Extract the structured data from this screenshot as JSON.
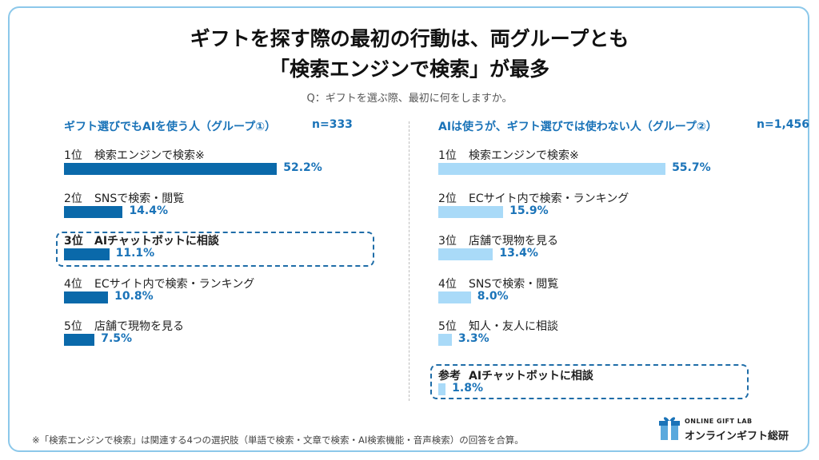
{
  "title_line1": "ギフトを探す際の最初の行動は、両グループとも",
  "title_line2": "「検索エンジンで検索」が最多",
  "question": "Q：ギフトを選ぶ際、最初に何をしますか。",
  "colors": {
    "group1_bar": "#0a69aa",
    "group2_bar": "#a9daf8",
    "value_text": "#1a73b8",
    "frame": "#8cc8ea"
  },
  "chart_data": [
    {
      "type": "bar",
      "orientation": "horizontal",
      "title": "ギフト選びでもAIを使う人（グループ①）",
      "n_label": "n=333",
      "items": [
        {
          "rank": "1位",
          "label": "検索エンジンで検索※",
          "value": 52.2,
          "value_label": "52.2%"
        },
        {
          "rank": "2位",
          "label": "SNSで検索・閲覧",
          "value": 14.4,
          "value_label": "14.4%"
        },
        {
          "rank": "3位",
          "label": "AIチャットボットに相談",
          "value": 11.1,
          "value_label": "11.1%",
          "highlight": true
        },
        {
          "rank": "4位",
          "label": "ECサイト内で検索・ランキング",
          "value": 10.8,
          "value_label": "10.8%"
        },
        {
          "rank": "5位",
          "label": "店舗で現物を見る",
          "value": 7.5,
          "value_label": "7.5%"
        }
      ]
    },
    {
      "type": "bar",
      "orientation": "horizontal",
      "title": "AIは使うが、ギフト選びでは使わない人（グループ②）",
      "n_label": "n=1,456",
      "items": [
        {
          "rank": "1位",
          "label": "検索エンジンで検索※",
          "value": 55.7,
          "value_label": "55.7%"
        },
        {
          "rank": "2位",
          "label": "ECサイト内で検索・ランキング",
          "value": 15.9,
          "value_label": "15.9%"
        },
        {
          "rank": "3位",
          "label": "店舗で現物を見る",
          "value": 13.4,
          "value_label": "13.4%"
        },
        {
          "rank": "4位",
          "label": "SNSで検索・閲覧",
          "value": 8.0,
          "value_label": "8.0%"
        },
        {
          "rank": "5位",
          "label": "知人・友人に相談",
          "value": 3.3,
          "value_label": "3.3%"
        },
        {
          "rank": "参考",
          "label": "AIチャットボットに相談",
          "value": 1.8,
          "value_label": "1.8%",
          "highlight": true
        }
      ]
    }
  ],
  "footnote": "※「検索エンジンで検索」は関連する4つの選択肢（単語で検索・文章で検索・AI検索機能・音声検索）の回答を合算。",
  "logo": {
    "small_text": "ONLINE GIFT LAB",
    "name": "オンラインギフト総研",
    "icon": "gift-box-icon"
  }
}
